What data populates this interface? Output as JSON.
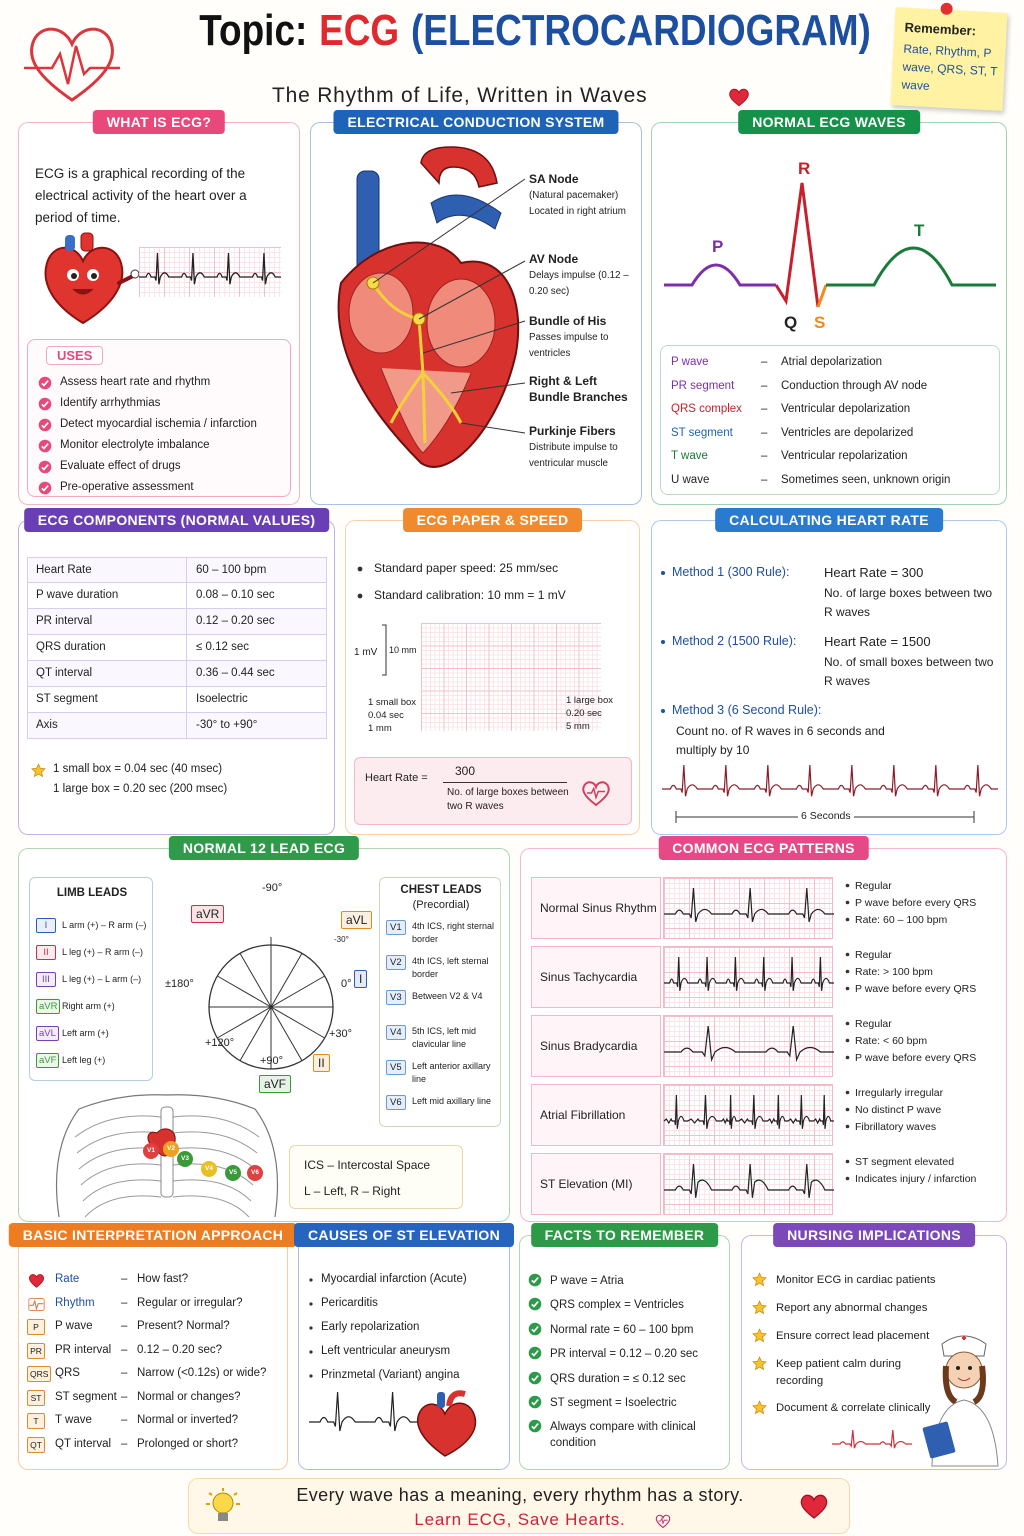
{
  "header": {
    "title_prefix": "Topic:",
    "title_main": "ECG",
    "title_rest": "(ELECTROCARDIOGRAM)",
    "subtitle": "The Rhythm of Life, Written in Waves"
  },
  "remember_note": {
    "heading": "Remember:",
    "text": "Rate, Rhythm, P wave, QRS, ST, T wave"
  },
  "what_is_ecg": {
    "title": "WHAT IS ECG?",
    "text": "ECG is a graphical recording of the electrical activity of the heart over a period of time.",
    "uses_title": "USES",
    "uses": [
      "Assess heart rate and rhythm",
      "Identify arrhythmias",
      "Detect myocardial ischemia / infarction",
      "Monitor electrolyte imbalance",
      "Evaluate effect of drugs",
      "Pre-operative assessment"
    ]
  },
  "conduction": {
    "title": "ELECTRICAL CONDUCTION SYSTEM",
    "labels": [
      {
        "name": "SA Node",
        "desc": "(Natural pacemaker) Located in right atrium"
      },
      {
        "name": "AV Node",
        "desc": "Delays impulse (0.12 – 0.20 sec)"
      },
      {
        "name": "Bundle of His",
        "desc": "Passes impulse to ventricles"
      },
      {
        "name": "Right & Left Bundle Branches"
      },
      {
        "name": "Purkinje Fibers",
        "desc": "Distribute impulse to ventricular muscle"
      }
    ]
  },
  "normal_waves": {
    "title": "NORMAL ECG WAVES",
    "peaks": {
      "P": "P",
      "Q": "Q",
      "R": "R",
      "S": "S",
      "T": "T"
    },
    "separator": "–",
    "rows": [
      {
        "term": "P wave",
        "desc": "Atrial depolarization"
      },
      {
        "term": "PR segment",
        "desc": "Conduction through AV node"
      },
      {
        "term": "QRS complex",
        "desc": "Ventricular depolarization"
      },
      {
        "term": "ST segment",
        "desc": "Ventricles are depolarized"
      },
      {
        "term": "T wave",
        "desc": "Ventricular repolarization"
      },
      {
        "term": "U wave",
        "desc": "Sometimes seen, unknown origin"
      }
    ]
  },
  "components": {
    "title": "ECG COMPONENTS (NORMAL VALUES)",
    "rows": [
      [
        "Heart Rate",
        "60 – 100 bpm"
      ],
      [
        "P wave duration",
        "0.08 – 0.10 sec"
      ],
      [
        "PR interval",
        "0.12 – 0.20 sec"
      ],
      [
        "QRS duration",
        "≤ 0.12 sec"
      ],
      [
        "QT interval",
        "0.36 – 0.44 sec"
      ],
      [
        "ST segment",
        "Isoelectric"
      ],
      [
        "Axis",
        "-30° to +90°"
      ]
    ],
    "notes": [
      "1 small box = 0.04 sec (40 msec)",
      "1 large box = 0.20 sec (200 msec)"
    ]
  },
  "paper": {
    "title": "ECG PAPER & SPEED",
    "bullets": [
      "Standard paper speed: 25 mm/sec",
      "Standard calibration: 10 mm = 1 mV"
    ],
    "mv_label": "1 mV",
    "mm_label": "10 mm",
    "small_box": [
      "1 small box",
      "0.04 sec",
      "1 mm"
    ],
    "large_box": [
      "1 large box",
      "0.20 sec",
      "5 mm"
    ],
    "formula": {
      "label": "Heart Rate =",
      "numerator": "300",
      "denominator": "No. of large boxes between two R waves"
    }
  },
  "heart_rate": {
    "title": "CALCULATING HEART RATE",
    "methods": [
      {
        "name": "Method 1 (300 Rule):",
        "formula": "Heart Rate = 300",
        "detail": "No. of large boxes between two R waves"
      },
      {
        "name": "Method 2 (1500 Rule):",
        "formula": "Heart Rate = 1500",
        "detail": "No. of small boxes between two R waves"
      },
      {
        "name": "Method 3 (6 Second Rule):",
        "detail": "Count no. of R waves in 6 seconds and multiply by 10"
      }
    ],
    "strip_label": "6 Seconds"
  },
  "twelve_lead": {
    "title": "NORMAL 12 LEAD ECG",
    "limb_title": "LIMB LEADS",
    "limb": [
      {
        "lead": "I",
        "desc": "L arm (+) – R arm (–)"
      },
      {
        "lead": "II",
        "desc": "L leg (+) – R arm (–)"
      },
      {
        "lead": "III",
        "desc": "L leg (+) – L arm (–)"
      },
      {
        "lead": "aVR",
        "desc": "Right arm (+)"
      },
      {
        "lead": "aVL",
        "desc": "Left arm (+)"
      },
      {
        "lead": "aVF",
        "desc": "Left leg (+)"
      }
    ],
    "axis_leads": {
      "aVR": "aVR",
      "aVL": "aVL",
      "I": "I",
      "II": "II",
      "aVF": "aVF"
    },
    "axis_angles": {
      "m90": "-90°",
      "m30": "-30°",
      "zero": "0°",
      "p30": "+30°",
      "p90": "+90°",
      "p120": "+120°",
      "pm180": "±180°"
    },
    "chest_title": "CHEST LEADS",
    "chest_subtitle": "(Precordial)",
    "chest": [
      {
        "lead": "V1",
        "desc": "4th ICS, right sternal border"
      },
      {
        "lead": "V2",
        "desc": "4th ICS, left sternal border"
      },
      {
        "lead": "V3",
        "desc": "Between V2 & V4"
      },
      {
        "lead": "V4",
        "desc": "5th ICS, left mid clavicular line"
      },
      {
        "lead": "V5",
        "desc": "Left anterior axillary line"
      },
      {
        "lead": "V6",
        "desc": "Left mid axillary line"
      }
    ],
    "legend": [
      "ICS – Intercostal Space",
      "L – Left, R – Right"
    ]
  },
  "patterns": {
    "title": "COMMON ECG PATTERNS",
    "rows": [
      {
        "name": "Normal Sinus Rhythm",
        "notes": [
          "Regular",
          "P wave before every QRS",
          "Rate: 60 – 100 bpm"
        ]
      },
      {
        "name": "Sinus Tachycardia",
        "notes": [
          "Regular",
          "Rate: > 100 bpm",
          "P wave before every QRS"
        ]
      },
      {
        "name": "Sinus Bradycardia",
        "notes": [
          "Regular",
          "Rate: < 60 bpm",
          "P wave before every QRS"
        ]
      },
      {
        "name": "Atrial Fibrillation",
        "notes": [
          "Irregularly irregular",
          "No distinct P wave",
          "Fibrillatory waves"
        ]
      },
      {
        "name": "ST Elevation (MI)",
        "notes": [
          "ST segment elevated",
          "Indicates injury / infarction"
        ]
      }
    ]
  },
  "interpretation": {
    "title": "BASIC INTERPRETATION APPROACH",
    "separator": "–",
    "rows": [
      {
        "term": "Rate",
        "desc": "How fast?"
      },
      {
        "term": "Rhythm",
        "desc": "Regular or irregular?"
      },
      {
        "badge": "P",
        "term": "P wave",
        "desc": "Present? Normal?"
      },
      {
        "badge": "PR",
        "term": "PR interval",
        "desc": "0.12 – 0.20 sec?"
      },
      {
        "badge": "QRS",
        "term": "QRS",
        "desc": "Narrow (<0.12s) or wide?"
      },
      {
        "badge": "ST",
        "term": "ST segment",
        "desc": "Normal or changes?"
      },
      {
        "badge": "T",
        "term": "T wave",
        "desc": "Normal or inverted?"
      },
      {
        "badge": "QT",
        "term": "QT interval",
        "desc": "Prolonged or short?"
      }
    ]
  },
  "st_causes": {
    "title": "CAUSES OF ST ELEVATION",
    "items": [
      "Myocardial infarction (Acute)",
      "Pericarditis",
      "Early repolarization",
      "Left ventricular aneurysm",
      "Prinzmetal (Variant) angina"
    ]
  },
  "facts": {
    "title": "FACTS TO REMEMBER",
    "items": [
      "P wave = Atria",
      "QRS complex = Ventricles",
      "Normal rate = 60 – 100 bpm",
      "PR interval = 0.12 – 0.20 sec",
      "QRS duration = ≤ 0.12 sec",
      "ST segment = Isoelectric",
      "Always compare with clinical condition"
    ]
  },
  "nursing": {
    "title": "NURSING IMPLICATIONS",
    "items": [
      "Monitor ECG in cardiac patients",
      "Report any abnormal changes",
      "Ensure correct lead placement",
      "Keep patient calm during recording",
      "Document & correlate clinically"
    ]
  },
  "footer": {
    "line1": "Every wave has a meaning, every rhythm has a story.",
    "line2": "Learn ECG, Save Hearts."
  }
}
